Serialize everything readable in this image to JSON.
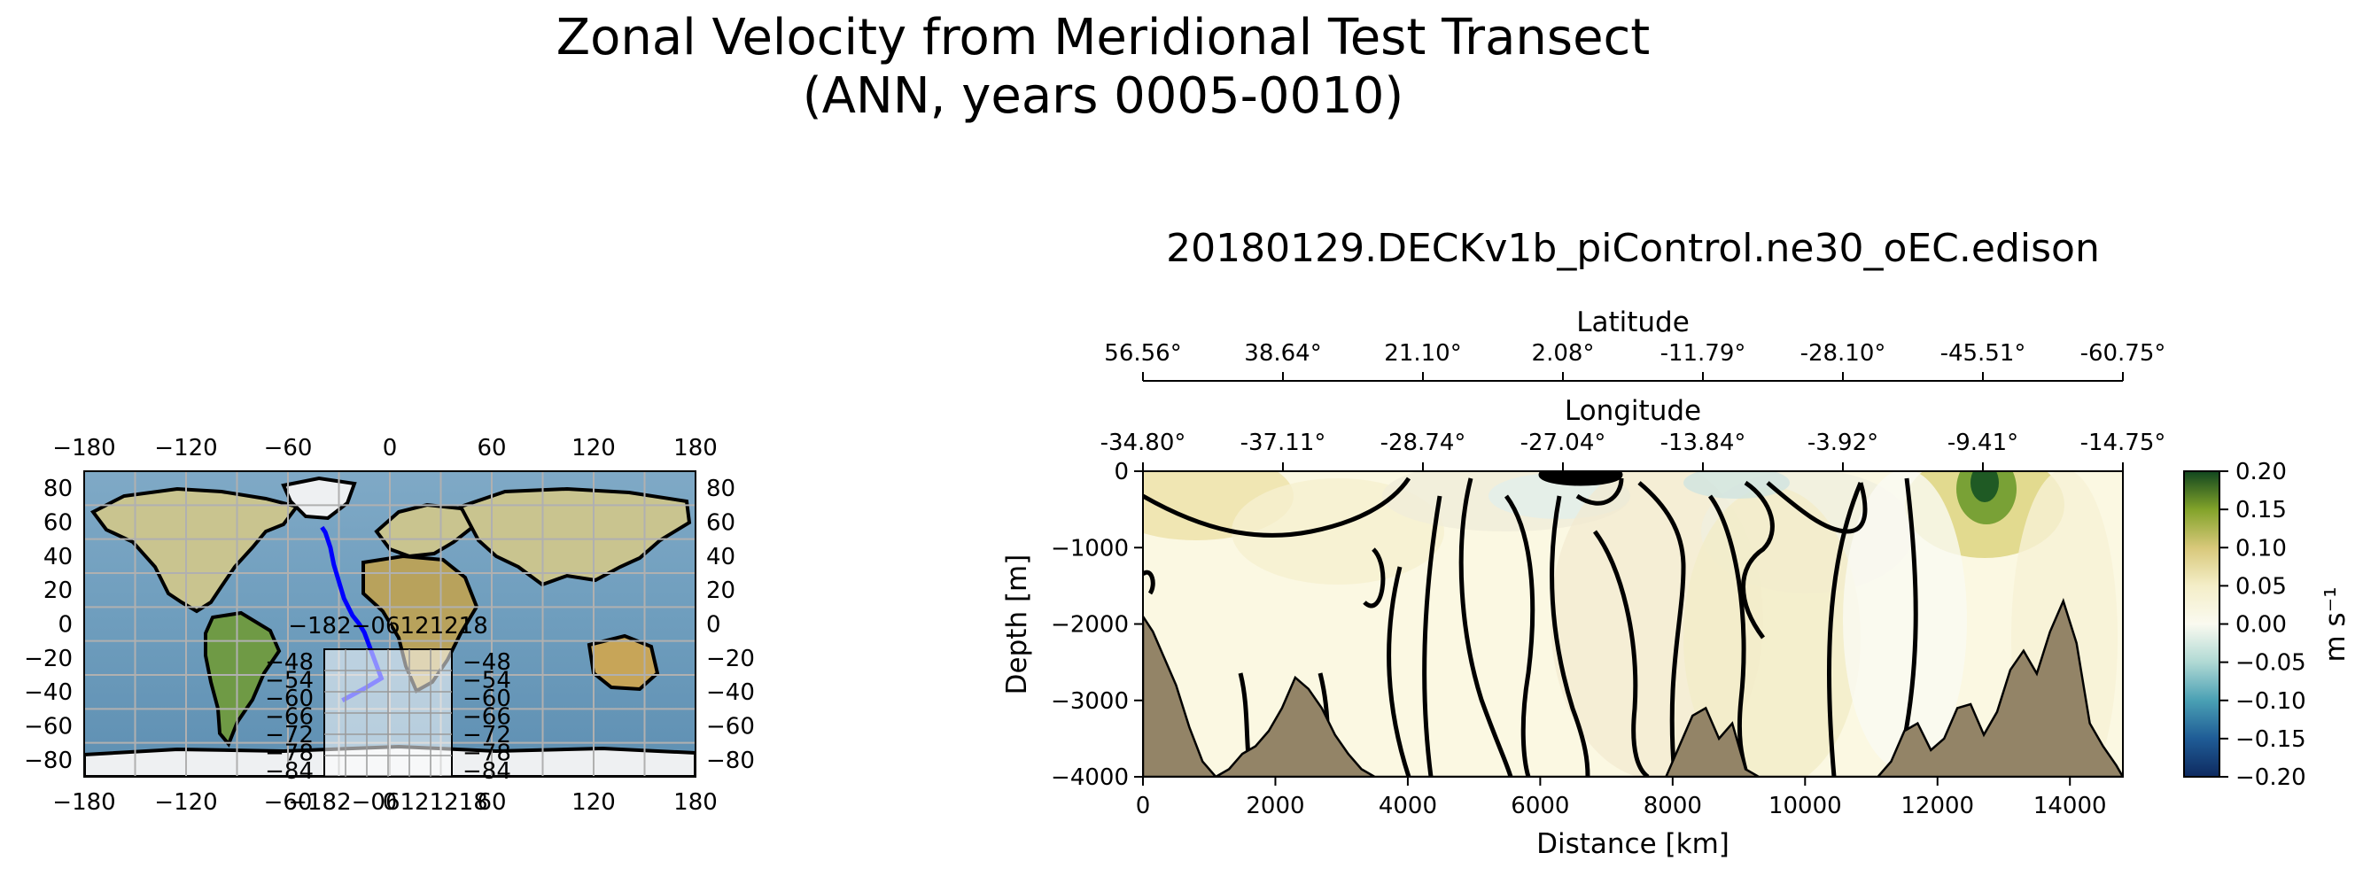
{
  "title": {
    "line1": "Zonal Velocity from Meridional Test Transect",
    "line2": "(ANN, years 0005-0010)"
  },
  "chart_data": [
    {
      "type": "map",
      "name": "transect-location-map",
      "lon_ticks": [
        "−180",
        "−120",
        "−60",
        "0",
        "60",
        "120",
        "180"
      ],
      "lat_ticks": [
        "80",
        "60",
        "40",
        "20",
        "0",
        "−20",
        "−40",
        "−60",
        "−80"
      ],
      "lon_range": [
        -180,
        180
      ],
      "lat_range": [
        -90,
        90
      ],
      "transect": {
        "lon": [
          -40,
          -38,
          -35,
          -33,
          -30,
          -27,
          -22,
          -18,
          -15,
          -5,
          -15,
          -28
        ],
        "lat": [
          57,
          54,
          45,
          35,
          25,
          15,
          5,
          0,
          -5,
          -32,
          -38,
          -45
        ]
      },
      "inset": {
        "top_ticks": "−182−06121218",
        "bottom_ticks": "−182−06121218",
        "lat_ticks": [
          "−48",
          "−54",
          "−60",
          "−66",
          "−72",
          "−78",
          "−84"
        ]
      }
    },
    {
      "type": "heatmap",
      "name": "zonal-velocity-section",
      "title": "20180129.DECKv1b_piControl.ne30_oEC.edison",
      "xlabel": "Distance [km]",
      "ylabel": "Depth [m]",
      "xlim": [
        0,
        14800
      ],
      "ylim": [
        -4000,
        0
      ],
      "xticks": [
        0,
        2000,
        4000,
        6000,
        8000,
        10000,
        12000,
        14000
      ],
      "yticks": [
        0,
        -1000,
        -2000,
        -3000,
        -4000
      ],
      "latitude_label": "Latitude",
      "latitude_ticks": [
        "56.56°",
        "38.64°",
        "21.10°",
        "2.08°",
        "-11.79°",
        "-28.10°",
        "-45.51°",
        "-60.75°"
      ],
      "longitude_label": "Longitude",
      "longitude_ticks": [
        "-34.80°",
        "-37.11°",
        "-28.74°",
        "-27.04°",
        "-13.84°",
        "-3.92°",
        "-9.41°",
        "-14.75°"
      ],
      "colorbar": {
        "label": "m s⁻¹",
        "range": [
          -0.2,
          0.2
        ],
        "ticks": [
          "0.20",
          "0.15",
          "0.10",
          "0.05",
          "0.00",
          "−0.05",
          "−0.10",
          "−0.15",
          "−0.20"
        ],
        "stops": [
          "#0e2a60",
          "#1f5c96",
          "#4aa0b4",
          "#b0d9d4",
          "#fafaf0",
          "#f4eec8",
          "#d8c87a",
          "#82a32a",
          "#11461f"
        ]
      },
      "bathymetry": {
        "x": [
          0,
          150,
          300,
          500,
          700,
          900,
          1100,
          1300,
          1500,
          1700,
          1900,
          2100,
          2300,
          2500,
          2700,
          2900,
          3100,
          3300,
          3500,
          3700,
          3900,
          4100,
          4300,
          4500,
          4700,
          4900,
          5100,
          5300,
          5500,
          5700,
          5900,
          6100,
          6300,
          6500,
          6700,
          6900,
          7100,
          7300,
          7500,
          7700,
          7900,
          8100,
          8300,
          8500,
          8700,
          8900,
          9100,
          9300,
          9500,
          9700,
          9900,
          10100,
          10300,
          10500,
          10700,
          10900,
          11100,
          11300,
          11500,
          11700,
          11900,
          12100,
          12300,
          12500,
          12700,
          12900,
          13100,
          13300,
          13500,
          13700,
          13900,
          14100,
          14300,
          14500,
          14700,
          14800
        ],
        "depth": [
          -1900,
          -2100,
          -2400,
          -2800,
          -3350,
          -3800,
          -4000,
          -3900,
          -3700,
          -3600,
          -3400,
          -3100,
          -2700,
          -2850,
          -3100,
          -3450,
          -3700,
          -3900,
          -4000,
          -4000,
          -4000,
          -4000,
          -4000,
          -4000,
          -4000,
          -4000,
          -4000,
          -4000,
          -4000,
          -4000,
          -4000,
          -4000,
          -4000,
          -4000,
          -4000,
          -4000,
          -4000,
          -4000,
          -4000,
          -4000,
          -4000,
          -3600,
          -3200,
          -3100,
          -3500,
          -3300,
          -3900,
          -4000,
          -4000,
          -4000,
          -4000,
          -4000,
          -4000,
          -4000,
          -4000,
          -4000,
          -4000,
          -3800,
          -3400,
          -3300,
          -3650,
          -3500,
          -3100,
          -3050,
          -3450,
          -3150,
          -2600,
          -2350,
          -2650,
          -2100,
          -1700,
          -2250,
          -3300,
          -3600,
          -3850,
          -4000
        ]
      }
    }
  ]
}
